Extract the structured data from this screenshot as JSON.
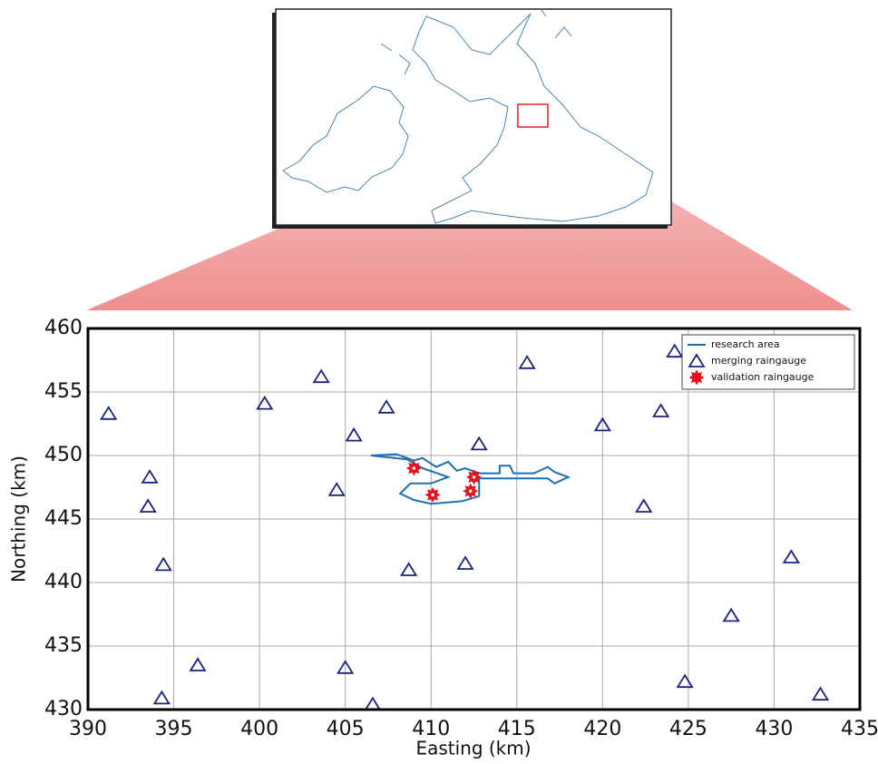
{
  "chart_data": {
    "type": "scatter",
    "xlabel": "Easting (km)",
    "ylabel": "Northing (km)",
    "xlim": [
      390,
      435
    ],
    "ylim": [
      430,
      460
    ],
    "xticks": [
      390,
      395,
      400,
      405,
      410,
      415,
      420,
      425,
      430,
      435
    ],
    "yticks": [
      430,
      435,
      440,
      445,
      450,
      455,
      460
    ],
    "grid": true,
    "legend": "upper right",
    "series": [
      {
        "name": "research area",
        "color": "#1f6fb0",
        "marker": "line",
        "x": [
          406.5,
          408.0,
          409.0,
          409.5,
          410.3,
          411.0,
          411.5,
          412.0,
          412.8,
          414.0,
          414.0,
          414.6,
          414.8,
          416.0,
          416.8,
          417.2,
          418.0,
          417.2,
          416.8,
          412.8,
          412.8,
          411.8,
          410.0,
          409.0,
          408.2,
          408.8,
          410.0,
          411.0,
          409.5,
          408.6,
          406.5
        ],
        "y": [
          450.0,
          450.1,
          449.6,
          449.8,
          449.1,
          449.5,
          448.8,
          449.0,
          448.6,
          448.6,
          449.2,
          449.2,
          448.6,
          448.6,
          449.1,
          448.7,
          448.3,
          447.8,
          448.2,
          448.2,
          446.8,
          446.4,
          446.2,
          446.5,
          447.0,
          447.8,
          447.8,
          448.3,
          449.0,
          449.7,
          450.0
        ]
      },
      {
        "name": "merging raingauge",
        "color": "#1a237e",
        "marker": "triangle",
        "x": [
          391.2,
          393.6,
          393.5,
          394.4,
          394.3,
          396.4,
          400.3,
          403.6,
          404.5,
          405.0,
          405.5,
          406.6,
          407.4,
          408.7,
          412.0,
          412.8,
          415.6,
          420.0,
          422.4,
          423.4,
          424.2,
          424.8,
          427.5,
          431.0,
          432.7
        ],
        "y": [
          453.3,
          448.3,
          446.0,
          441.4,
          430.9,
          433.5,
          454.1,
          456.2,
          447.3,
          433.3,
          451.6,
          430.4,
          453.8,
          441.0,
          441.5,
          450.9,
          457.3,
          452.4,
          446.0,
          453.5,
          458.2,
          432.2,
          437.4,
          442.0,
          431.2
        ]
      },
      {
        "name": "validation raingauge",
        "color": "#e8101a",
        "marker": "star",
        "x": [
          409.0,
          410.1,
          412.3,
          412.5
        ],
        "y": [
          449.0,
          446.9,
          447.2,
          448.3
        ]
      }
    ]
  }
}
